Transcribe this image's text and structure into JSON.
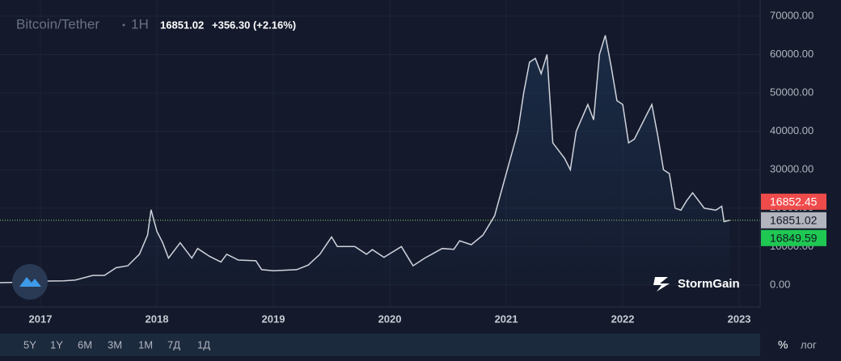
{
  "chart_data": {
    "type": "line",
    "symbol": "Bitcoin/Tether",
    "interval": "1H",
    "price": 16851.02,
    "change": "+356.30 (+2.16%)",
    "x": [
      2016.65,
      2016.9,
      2017.0,
      2017.2,
      2017.3,
      2017.45,
      2017.55,
      2017.65,
      2017.75,
      2017.85,
      2017.92,
      2017.95,
      2018.0,
      2018.05,
      2018.1,
      2018.2,
      2018.3,
      2018.35,
      2018.45,
      2018.55,
      2018.6,
      2018.7,
      2018.85,
      2018.9,
      2019.0,
      2019.2,
      2019.3,
      2019.4,
      2019.5,
      2019.55,
      2019.7,
      2019.8,
      2019.85,
      2019.95,
      2020.1,
      2020.2,
      2020.3,
      2020.45,
      2020.55,
      2020.6,
      2020.7,
      2020.8,
      2020.9,
      2021.0,
      2021.1,
      2021.15,
      2021.2,
      2021.25,
      2021.3,
      2021.35,
      2021.4,
      2021.5,
      2021.55,
      2021.6,
      2021.7,
      2021.75,
      2021.8,
      2021.85,
      2021.9,
      2021.95,
      2022.0,
      2022.05,
      2022.1,
      2022.2,
      2022.25,
      2022.3,
      2022.35,
      2022.4,
      2022.45,
      2022.5,
      2022.55,
      2022.6,
      2022.7,
      2022.8,
      2022.85,
      2022.87,
      2022.92
    ],
    "values": [
      600,
      750,
      1000,
      1100,
      1300,
      2500,
      2500,
      4500,
      5000,
      8000,
      13000,
      19600,
      14000,
      11000,
      7000,
      11000,
      7000,
      9500,
      7500,
      6000,
      8000,
      6500,
      6300,
      4000,
      3700,
      4000,
      5200,
      8000,
      12500,
      10000,
      10000,
      8000,
      9200,
      7200,
      10000,
      5000,
      7000,
      9500,
      9300,
      11500,
      10500,
      13000,
      18000,
      29000,
      40000,
      50000,
      58000,
      59000,
      55000,
      60000,
      37000,
      33000,
      30000,
      40000,
      47000,
      43000,
      60000,
      65000,
      57000,
      48000,
      47000,
      37000,
      38000,
      44000,
      47000,
      39000,
      30000,
      29000,
      20000,
      19500,
      22000,
      24000,
      20000,
      19500,
      20500,
      16500,
      16851
    ],
    "color": "#d1d4dc",
    "xlim": [
      2016.653,
      2023.18
    ],
    "xticks": [
      2017,
      2018,
      2019,
      2020,
      2021,
      2022,
      2023
    ],
    "ylim": [
      -5700,
      74200
    ],
    "yticks": [
      {
        "value": 0,
        "label": "0.00"
      },
      {
        "value": 10000,
        "label": "10000.00"
      },
      {
        "value": 20000,
        "label": "20000.00"
      },
      {
        "value": 30000,
        "label": "30000.00"
      },
      {
        "value": 40000,
        "label": "40000.00"
      },
      {
        "value": 50000,
        "label": "50000.00"
      },
      {
        "value": 60000,
        "label": "60000.00"
      },
      {
        "value": 70000,
        "label": "70000.00"
      }
    ],
    "grid": true,
    "ask": 16852.45,
    "bid": 16849.59,
    "brand": "StormGain",
    "ranges": [
      "5Y",
      "1Y",
      "6M",
      "3M",
      "1M",
      "7Д",
      "1Д"
    ],
    "percent": "%",
    "log": "лог"
  }
}
